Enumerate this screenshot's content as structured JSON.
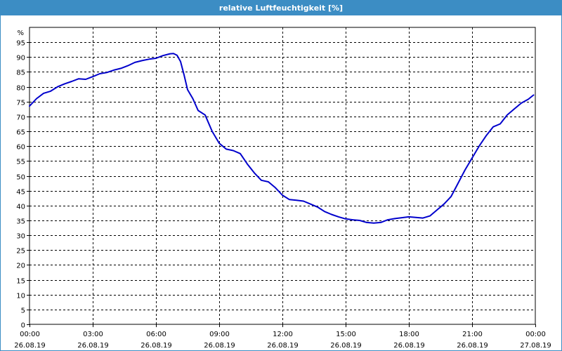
{
  "window": {
    "title": "relative Luftfeuchtigkeit [%]"
  },
  "colors": {
    "title_bar": "#3c8dc4",
    "series": "#0000cc",
    "grid": "#000000"
  },
  "chart_data": {
    "type": "line",
    "title": "relative Luftfeuchtigkeit [%]",
    "ylabel": "%",
    "xlabel": "",
    "ylim": [
      0,
      100
    ],
    "xlim": [
      "26.08.19 00:00",
      "27.08.19 00:00"
    ],
    "grid": true,
    "legend": "none",
    "y_ticks": [
      "0",
      "5",
      "10",
      "15",
      "20",
      "25",
      "30",
      "35",
      "40",
      "45",
      "50",
      "55",
      "60",
      "65",
      "70",
      "75",
      "80",
      "85",
      "90",
      "95"
    ],
    "x_ticks": [
      {
        "time": "00:00",
        "date": "26.08.19"
      },
      {
        "time": "03:00",
        "date": "26.08.19"
      },
      {
        "time": "06:00",
        "date": "26.08.19"
      },
      {
        "time": "09:00",
        "date": "26.08.19"
      },
      {
        "time": "12:00",
        "date": "26.08.19"
      },
      {
        "time": "15:00",
        "date": "26.08.19"
      },
      {
        "time": "18:00",
        "date": "26.08.19"
      },
      {
        "time": "21:00",
        "date": "26.08.19"
      },
      {
        "time": "00:00",
        "date": "27.08.19"
      }
    ],
    "series": [
      {
        "x": [
          "00:00",
          "00:20",
          "00:40",
          "01:00",
          "01:20",
          "01:40",
          "02:00",
          "02:20",
          "02:40",
          "03:00",
          "03:20",
          "03:40",
          "04:00",
          "04:20",
          "04:40",
          "05:00",
          "05:20",
          "05:40",
          "06:00",
          "06:20",
          "06:40",
          "06:50",
          "07:00",
          "07:10",
          "07:20",
          "07:30",
          "07:45",
          "08:00",
          "08:20",
          "08:40",
          "09:00",
          "09:20",
          "09:40",
          "10:00",
          "10:20",
          "10:40",
          "11:00",
          "11:20",
          "11:40",
          "12:00",
          "12:20",
          "12:40",
          "13:00",
          "13:20",
          "13:40",
          "14:00",
          "14:20",
          "14:40",
          "15:00",
          "15:20",
          "15:40",
          "16:00",
          "16:20",
          "16:40",
          "17:00",
          "17:20",
          "17:40",
          "18:00",
          "18:20",
          "18:40",
          "19:00",
          "19:20",
          "19:40",
          "20:00",
          "20:20",
          "20:40",
          "21:00",
          "21:20",
          "21:40",
          "22:00",
          "22:20",
          "22:40",
          "23:00",
          "23:20",
          "23:40",
          "23:55"
        ],
        "values": [
          73.5,
          76,
          77.8,
          78.5,
          80,
          81,
          81.8,
          82.7,
          82.5,
          83.4,
          84.4,
          84.8,
          85.6,
          86.2,
          87.1,
          88.2,
          88.8,
          89.3,
          89.6,
          90.5,
          91.1,
          91.2,
          90.6,
          88.5,
          84,
          79,
          76,
          72,
          70.5,
          65,
          61,
          59,
          58.5,
          57.5,
          54,
          51,
          48.5,
          48,
          46,
          43.5,
          42,
          41.8,
          41.5,
          40.5,
          39.5,
          38,
          37,
          36.2,
          35.5,
          35.2,
          35,
          34.3,
          34.1,
          34.3,
          35.2,
          35.6,
          35.9,
          36.2,
          36,
          35.8,
          36.5,
          38.5,
          40.5,
          43,
          47.5,
          52,
          56,
          60,
          63.5,
          66.5,
          67.5,
          70.5,
          72.5,
          74.5,
          75.8,
          77.2
        ]
      }
    ]
  }
}
